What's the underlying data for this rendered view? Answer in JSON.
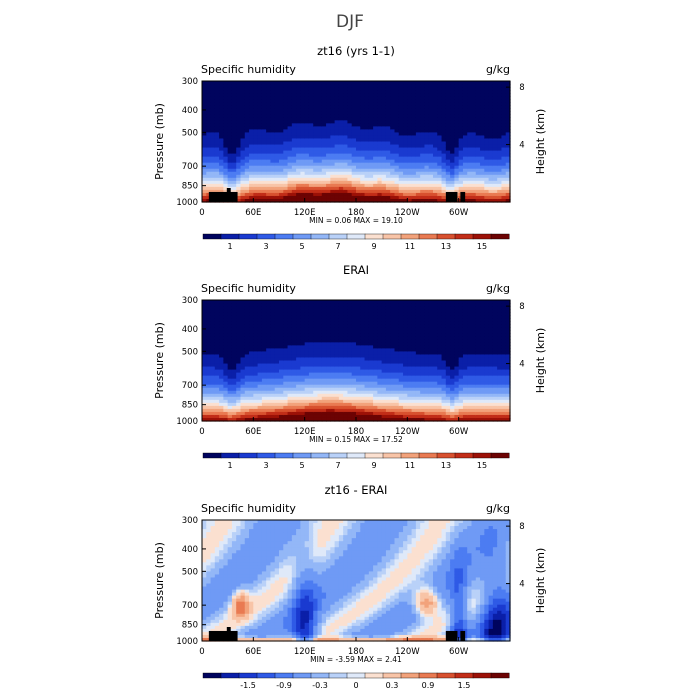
{
  "figure_title": "DJF",
  "colors": {
    "positive_scale": [
      "#00045e",
      "#0a1fa8",
      "#1a3ad0",
      "#2f5ae6",
      "#4c7cf2",
      "#6f9af5",
      "#93b7f7",
      "#b9d1f8",
      "#dfe9f9",
      "#fbe0d0",
      "#f8c4a7",
      "#f2a27b",
      "#e97a52",
      "#d8512f",
      "#c22d18",
      "#9c1107",
      "#6c0303"
    ],
    "diff_scale": [
      "#00045e",
      "#0a1fa8",
      "#1a3ad0",
      "#2f5ae6",
      "#4c7cf2",
      "#6f9af5",
      "#93b7f7",
      "#b9d1f8",
      "#dfe9f9",
      "#fbe0d0",
      "#f8c4a7",
      "#f2a27b",
      "#e97a52",
      "#d8512f",
      "#c22d18",
      "#9c1107",
      "#6c0303"
    ],
    "topography": "#000000",
    "frame": "#000000"
  },
  "chart_data": [
    {
      "type": "heatmap",
      "title": "zt16 (yrs 1-1)",
      "left_label": "Specific humidity",
      "right_label": "g/kg",
      "ylabel": "Pressure (mb)",
      "y2label": "Height (km)",
      "x_ticks": [
        "0",
        "60E",
        "120E",
        "180",
        "120W",
        "60W"
      ],
      "x_tick_lon": [
        0,
        60,
        120,
        180,
        240,
        300
      ],
      "xlim": [
        0,
        360
      ],
      "y_ticks": [
        "300",
        "400",
        "500",
        "700",
        "850",
        "1000"
      ],
      "y_tick_p": [
        300,
        400,
        500,
        700,
        850,
        1000
      ],
      "y2_ticks": [
        "8",
        "4"
      ],
      "y2_tick_km": [
        8,
        4
      ],
      "ylim": [
        1000,
        300
      ],
      "min_text": "MIN =    0.06   MAX =   19.10",
      "min": 0.06,
      "max": 19.1,
      "colorbar_labels": [
        "1",
        "3",
        "5",
        "7",
        "9",
        "11",
        "13",
        "15"
      ],
      "colorbar_levels": [
        0,
        1,
        2,
        3,
        4,
        5,
        6,
        7,
        8,
        9,
        10,
        11,
        12,
        13,
        14,
        15,
        16
      ],
      "mode": "model"
    },
    {
      "type": "heatmap",
      "title": "ERAI",
      "left_label": "Specific humidity",
      "right_label": "g/kg",
      "ylabel": "Pressure (mb)",
      "y2label": "Height (km)",
      "x_ticks": [
        "0",
        "60E",
        "120E",
        "180",
        "120W",
        "60W"
      ],
      "x_tick_lon": [
        0,
        60,
        120,
        180,
        240,
        300
      ],
      "xlim": [
        0,
        360
      ],
      "y_ticks": [
        "300",
        "400",
        "500",
        "700",
        "850",
        "1000"
      ],
      "y_tick_p": [
        300,
        400,
        500,
        700,
        850,
        1000
      ],
      "y2_ticks": [
        "8",
        "4"
      ],
      "y2_tick_km": [
        8,
        4
      ],
      "ylim": [
        1000,
        300
      ],
      "min_text": "MIN =    0.15   MAX =   17.52",
      "min": 0.15,
      "max": 17.52,
      "colorbar_labels": [
        "1",
        "3",
        "5",
        "7",
        "9",
        "11",
        "13",
        "15"
      ],
      "colorbar_levels": [
        0,
        1,
        2,
        3,
        4,
        5,
        6,
        7,
        8,
        9,
        10,
        11,
        12,
        13,
        14,
        15,
        16
      ],
      "mode": "obs"
    },
    {
      "type": "heatmap",
      "title": "zt16 - ERAI",
      "left_label": "Specific humidity",
      "right_label": "g/kg",
      "ylabel": "Pressure (mb)",
      "y2label": "Height (km)",
      "x_ticks": [
        "0",
        "60E",
        "120E",
        "180",
        "120W",
        "60W"
      ],
      "x_tick_lon": [
        0,
        60,
        120,
        180,
        240,
        300
      ],
      "xlim": [
        0,
        360
      ],
      "y_ticks": [
        "300",
        "400",
        "500",
        "700",
        "850",
        "1000"
      ],
      "y_tick_p": [
        300,
        400,
        500,
        700,
        850,
        1000
      ],
      "y2_ticks": [
        "8",
        "4"
      ],
      "y2_tick_km": [
        8,
        4
      ],
      "ylim": [
        1000,
        300
      ],
      "min_text": "MIN =   -3.59   MAX =    2.41",
      "min": -3.59,
      "max": 2.41,
      "colorbar_labels": [
        "-1.5",
        "-0.9",
        "-0.3",
        "0",
        "0.3",
        "0.9",
        "1.5"
      ],
      "colorbar_levels": [
        -2.1,
        -1.8,
        -1.5,
        -1.2,
        -0.9,
        -0.6,
        -0.3,
        -0.1,
        0,
        0.1,
        0.3,
        0.6,
        0.9,
        1.2,
        1.5,
        1.8,
        2.1
      ],
      "mode": "diff"
    }
  ]
}
